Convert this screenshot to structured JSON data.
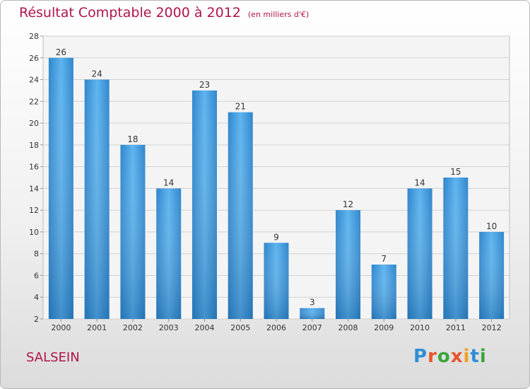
{
  "header": {
    "title": "Résultat Comptable 2000 à 2012",
    "subtitle": "(en milliers d'€)"
  },
  "footer": {
    "commune": "SALSEIN",
    "logo": {
      "letters": [
        "P",
        "r",
        "o",
        "x",
        "i",
        "t",
        "i"
      ],
      "colors": [
        "#2e8fd6",
        "#e8542d",
        "#3aa63a",
        "#e8542d",
        "#f0a020",
        "#2e8fd6",
        "#3aa63a"
      ]
    }
  },
  "chart_data": {
    "type": "bar",
    "categories": [
      "2000",
      "2001",
      "2002",
      "2003",
      "2004",
      "2005",
      "2006",
      "2007",
      "2008",
      "2009",
      "2010",
      "2011",
      "2012"
    ],
    "values": [
      26,
      24,
      18,
      14,
      23,
      21,
      9,
      3,
      12,
      7,
      14,
      15,
      10
    ],
    "ylim": [
      2,
      28
    ],
    "yticks": [
      2,
      4,
      6,
      8,
      10,
      12,
      14,
      16,
      18,
      20,
      22,
      24,
      26,
      28
    ],
    "grid": true,
    "bar_color": "#4aa3e2"
  }
}
